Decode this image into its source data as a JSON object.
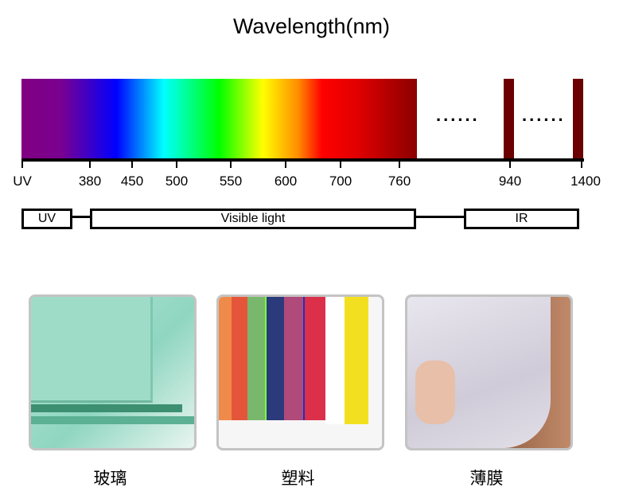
{
  "title": "Wavelength(nm)",
  "ticks": [
    "UV",
    "380",
    "450",
    "500",
    "550",
    "600",
    "700",
    "760",
    "940",
    "1400"
  ],
  "ellipsis": "......",
  "bands": {
    "uv": "UV",
    "visible": "Visible light",
    "ir": "IR"
  },
  "materials": [
    {
      "label": "玻璃"
    },
    {
      "label": "塑料"
    },
    {
      "label": "薄膜"
    }
  ]
}
